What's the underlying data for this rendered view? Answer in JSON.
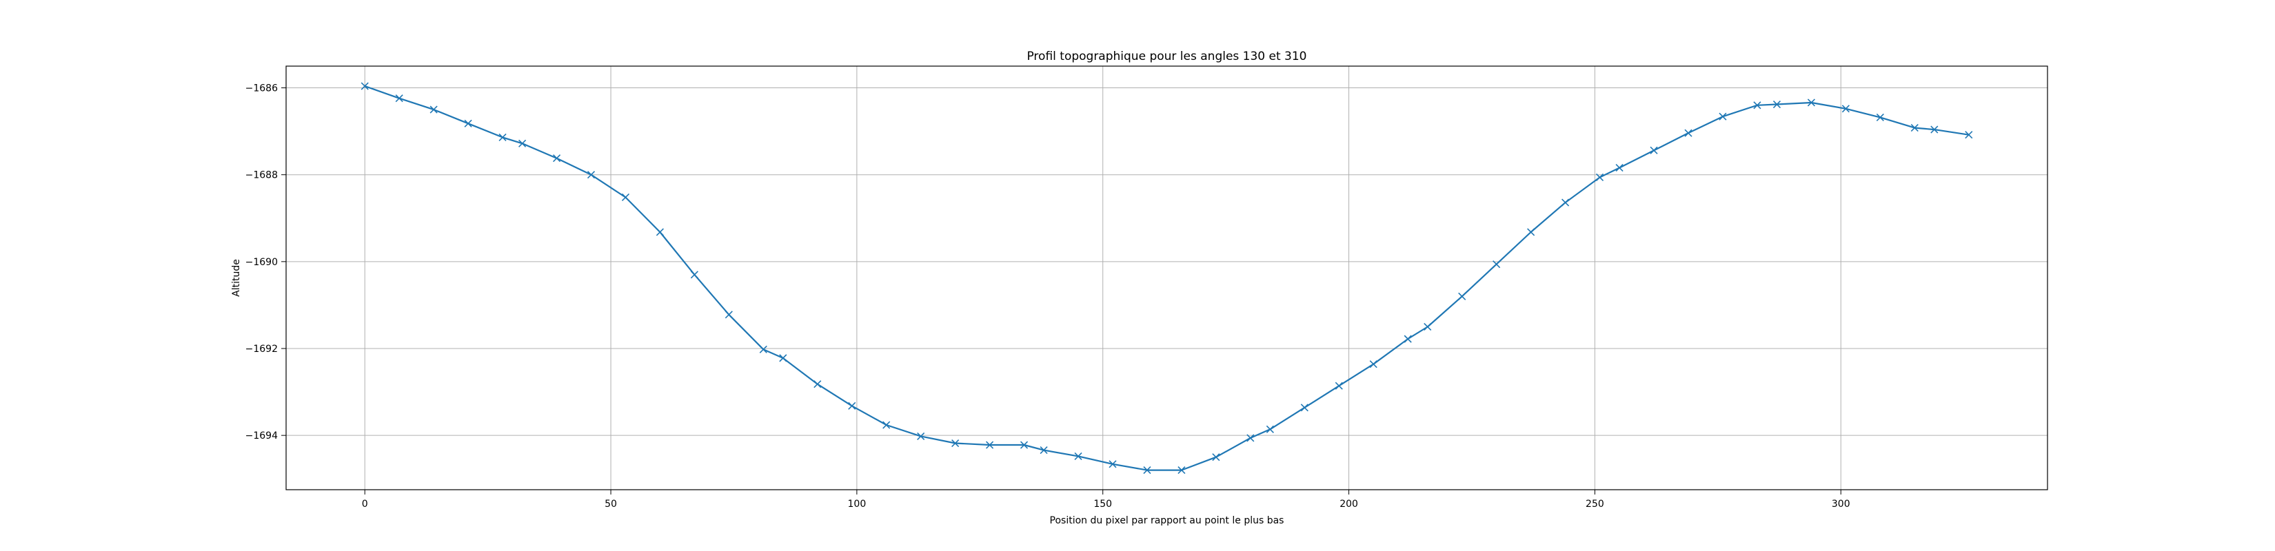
{
  "chart_data": {
    "type": "line",
    "title": "Profil topographique pour les angles 130 et 310",
    "xlabel": "Position du pixel par rapport au point le plus bas",
    "ylabel": "Altitude",
    "xlim": [
      -16,
      342
    ],
    "ylim": [
      -1695.25,
      -1685.5
    ],
    "xticks": [
      0,
      50,
      100,
      150,
      200,
      250,
      300
    ],
    "xtick_labels": [
      "0",
      "50",
      "100",
      "150",
      "200",
      "250",
      "300"
    ],
    "yticks": [
      -1694,
      -1692,
      -1690,
      -1688,
      -1686
    ],
    "ytick_labels": [
      "−1694",
      "−1692",
      "−1690",
      "−1688",
      "−1686"
    ],
    "grid": true,
    "line_color": "#1f77b4",
    "marker": "x",
    "x": [
      0,
      7,
      14,
      21,
      28,
      32,
      39,
      46,
      53,
      60,
      67,
      74,
      81,
      85,
      92,
      99,
      106,
      113,
      120,
      127,
      134,
      138,
      145,
      152,
      159,
      166,
      173,
      180,
      184,
      191,
      198,
      205,
      212,
      216,
      223,
      230,
      237,
      244,
      251,
      255,
      262,
      269,
      276,
      283,
      287,
      294,
      301,
      308,
      315,
      319,
      326
    ],
    "y": [
      -1685.96,
      -1686.24,
      -1686.5,
      -1686.82,
      -1687.14,
      -1687.28,
      -1687.62,
      -1688.0,
      -1688.52,
      -1689.32,
      -1690.3,
      -1691.22,
      -1692.02,
      -1692.22,
      -1692.82,
      -1693.32,
      -1693.76,
      -1694.02,
      -1694.18,
      -1694.22,
      -1694.22,
      -1694.34,
      -1694.48,
      -1694.66,
      -1694.8,
      -1694.8,
      -1694.5,
      -1694.06,
      -1693.86,
      -1693.36,
      -1692.86,
      -1692.36,
      -1691.78,
      -1691.5,
      -1690.8,
      -1690.06,
      -1689.32,
      -1688.64,
      -1688.06,
      -1687.84,
      -1687.44,
      -1687.04,
      -1686.66,
      -1686.4,
      -1686.38,
      -1686.34,
      -1686.48,
      -1686.68,
      -1686.92,
      -1686.96,
      -1687.08
    ]
  }
}
